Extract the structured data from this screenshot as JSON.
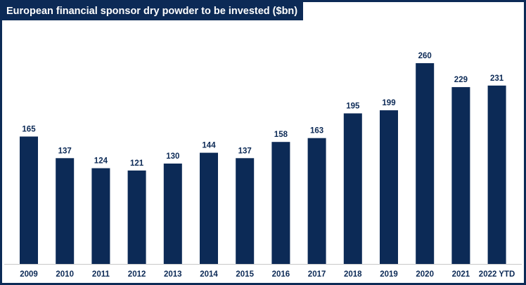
{
  "chart_data": {
    "type": "bar",
    "title": "European financial sponsor dry powder to be invested ($bn)",
    "categories": [
      "2009",
      "2010",
      "2011",
      "2012",
      "2013",
      "2014",
      "2015",
      "2016",
      "2017",
      "2018",
      "2019",
      "2020",
      "2021",
      "2022 YTD"
    ],
    "values": [
      165,
      137,
      124,
      121,
      130,
      144,
      137,
      158,
      163,
      195,
      199,
      260,
      229,
      231
    ],
    "xlabel": "",
    "ylabel": "",
    "ylim": [
      0,
      300
    ],
    "grid": false,
    "legend": "none",
    "data_labels": true,
    "colors": {
      "bar": "#0c2a56",
      "frame": "#0c2a56",
      "title_text": "#ffffff"
    }
  }
}
